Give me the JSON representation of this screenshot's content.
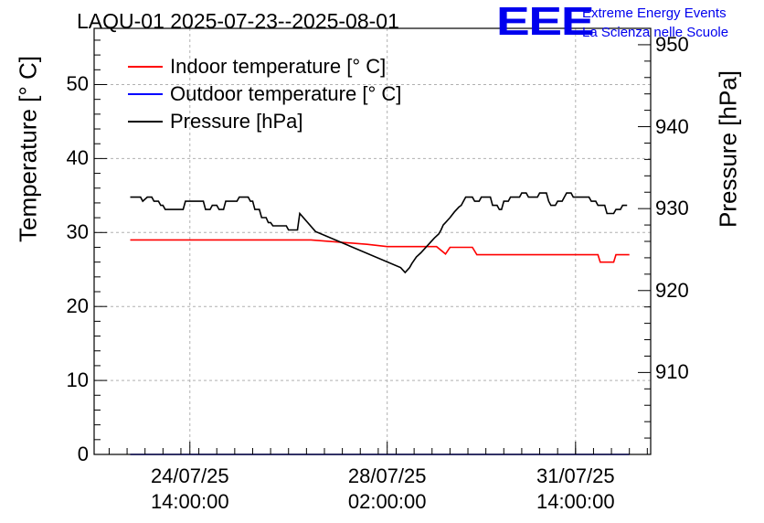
{
  "chart_data": {
    "type": "line",
    "title": "LAQU-01 2025-07-23--2025-08-01",
    "logo": {
      "mark": "EEE",
      "line1": "Extreme Energy Events",
      "line2": "La Scienza nelle Scuole"
    },
    "y_left_label": "Temperature [° C]",
    "y_right_label": "Pressure [hPa]",
    "y_left_range": [
      0,
      57.6
    ],
    "y_right_range": [
      900,
      952
    ],
    "y_left_ticks": [
      0,
      10,
      20,
      30,
      40,
      50
    ],
    "y_right_ticks": [
      910,
      920,
      930,
      940,
      950
    ],
    "x_range_hours": [
      -28.7,
      219.5
    ],
    "x_ticks": [
      {
        "hours": 14,
        "date": "24/07/25",
        "time": "14:00:00"
      },
      {
        "hours": 102,
        "date": "28/07/25",
        "time": "02:00:00"
      },
      {
        "hours": 186,
        "date": "31/07/25",
        "time": "14:00:00"
      }
    ],
    "grid": true,
    "legend_position": "top-left",
    "series": [
      {
        "name": "Indoor temperature [° C]",
        "color": "#ff0000",
        "axis": "left",
        "points": [
          [
            -12.6,
            29
          ],
          [
            68,
            29
          ],
          [
            93,
            28.4
          ],
          [
            102,
            28.1
          ],
          [
            124,
            28.1
          ],
          [
            128,
            27.1
          ],
          [
            130,
            28
          ],
          [
            140,
            28
          ],
          [
            142,
            27
          ],
          [
            184,
            27
          ],
          [
            196,
            27
          ],
          [
            197,
            26
          ],
          [
            203,
            26
          ],
          [
            204,
            27
          ],
          [
            210,
            27
          ]
        ]
      },
      {
        "name": "Outdoor temperature [° C]",
        "color": "#0000ff",
        "axis": "left",
        "points": [
          [
            -12.6,
            0
          ],
          [
            210,
            0
          ]
        ]
      },
      {
        "name": "Pressure [hPa]",
        "color": "#000000",
        "axis": "right",
        "points": [
          [
            -12.6,
            931.4
          ],
          [
            -8,
            931.4
          ],
          [
            -7,
            930.9
          ],
          [
            -5,
            931.4
          ],
          [
            -3,
            931.4
          ],
          [
            -2,
            930.9
          ],
          [
            0,
            930.9
          ],
          [
            1,
            930.4
          ],
          [
            2,
            930.4
          ],
          [
            3,
            929.9
          ],
          [
            11,
            929.9
          ],
          [
            12,
            930.9
          ],
          [
            20,
            930.9
          ],
          [
            21,
            929.9
          ],
          [
            23,
            929.9
          ],
          [
            24,
            930.4
          ],
          [
            26,
            930.4
          ],
          [
            27,
            929.9
          ],
          [
            29,
            929.9
          ],
          [
            30,
            930.9
          ],
          [
            35,
            930.9
          ],
          [
            36,
            931.4
          ],
          [
            40,
            931.4
          ],
          [
            41,
            930.9
          ],
          [
            42,
            930.9
          ],
          [
            43,
            929.9
          ],
          [
            45,
            929.9
          ],
          [
            46,
            928.9
          ],
          [
            48,
            928.9
          ],
          [
            49,
            928.3
          ],
          [
            50,
            928.3
          ],
          [
            51,
            927.9
          ],
          [
            57,
            927.9
          ],
          [
            58,
            927.4
          ],
          [
            62,
            927.4
          ],
          [
            63,
            929.4
          ],
          [
            70,
            927.2
          ],
          [
            108,
            922.8
          ],
          [
            110,
            922.2
          ],
          [
            112,
            922.8
          ],
          [
            113,
            923.3
          ],
          [
            115,
            924.1
          ],
          [
            117,
            924.6
          ],
          [
            119,
            925.2
          ],
          [
            121,
            925.8
          ],
          [
            123,
            926.4
          ],
          [
            125,
            926.9
          ],
          [
            126,
            927.4
          ],
          [
            127,
            928.0
          ],
          [
            128,
            928.3
          ],
          [
            130,
            928.9
          ],
          [
            132,
            929.6
          ],
          [
            134,
            930.2
          ],
          [
            135,
            930.4
          ],
          [
            136,
            930.9
          ],
          [
            137,
            931.4
          ],
          [
            140,
            931.4
          ],
          [
            141,
            930.9
          ],
          [
            143,
            930.9
          ],
          [
            144,
            931.4
          ],
          [
            148,
            931.4
          ],
          [
            149,
            930.4
          ],
          [
            151,
            930.4
          ],
          [
            152,
            929.9
          ],
          [
            153,
            929.9
          ],
          [
            154,
            930.9
          ],
          [
            156,
            930.9
          ],
          [
            157,
            931.4
          ],
          [
            161,
            931.4
          ],
          [
            162,
            931.9
          ],
          [
            164,
            931.9
          ],
          [
            165,
            931.4
          ],
          [
            169,
            931.4
          ],
          [
            170,
            931.9
          ],
          [
            173,
            931.9
          ],
          [
            174,
            930.9
          ],
          [
            175,
            930.4
          ],
          [
            177,
            930.4
          ],
          [
            178,
            930.9
          ],
          [
            180,
            930.9
          ],
          [
            181,
            931.4
          ],
          [
            182,
            931.9
          ],
          [
            184,
            931.9
          ],
          [
            185,
            931.4
          ],
          [
            192,
            931.4
          ],
          [
            193,
            930.9
          ],
          [
            195,
            930.9
          ],
          [
            196,
            930.4
          ],
          [
            199,
            930.4
          ],
          [
            200,
            929.4
          ],
          [
            203,
            929.4
          ],
          [
            204,
            929.9
          ],
          [
            206,
            929.9
          ],
          [
            207,
            930.4
          ],
          [
            209,
            930.4
          ]
        ]
      }
    ]
  }
}
